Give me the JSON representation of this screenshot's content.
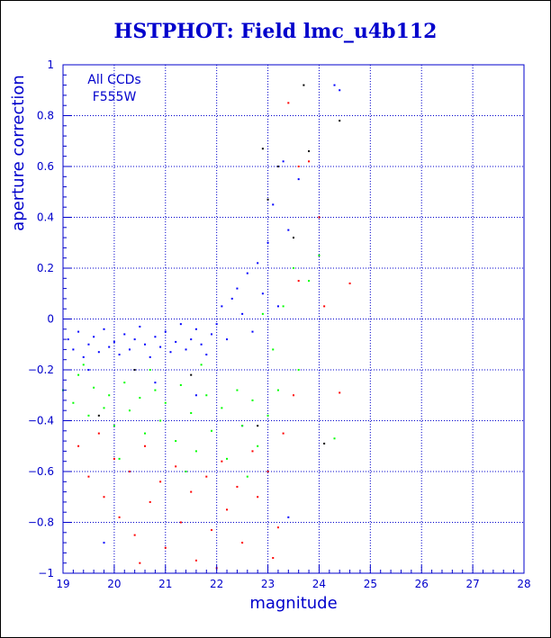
{
  "chart_data": {
    "type": "scatter",
    "title": "HSTPHOT: Field lmc_u4b112",
    "xlabel": "magnitude",
    "ylabel": "aperture correction",
    "xlim": [
      19,
      28
    ],
    "ylim": [
      -1,
      1
    ],
    "xticks": [
      19,
      20,
      21,
      22,
      23,
      24,
      25,
      26,
      27,
      28
    ],
    "yticks": [
      -1,
      -0.8,
      -0.6,
      -0.4,
      -0.2,
      0,
      0.2,
      0.4,
      0.6,
      0.8,
      1
    ],
    "ytick_labels": [
      "−1",
      "−0.8",
      "−0.6",
      "−0.4",
      "−0.2",
      "0",
      "0.2",
      "0.4",
      "0.6",
      "0.8",
      "1"
    ],
    "grid": true,
    "annotations": [
      "All CCDs",
      "F555W"
    ],
    "colors": {
      "axis": "#0000cc",
      "grid": "#0000cc",
      "text": "#0000cc",
      "title": "#0000cc"
    },
    "series": [
      {
        "color": "#0000ff",
        "points": [
          [
            19.1,
            -0.08
          ],
          [
            19.2,
            -0.12
          ],
          [
            19.3,
            -0.05
          ],
          [
            19.4,
            -0.15
          ],
          [
            19.5,
            -0.1
          ],
          [
            19.6,
            -0.07
          ],
          [
            19.7,
            -0.13
          ],
          [
            19.8,
            -0.04
          ],
          [
            19.9,
            -0.11
          ],
          [
            20.0,
            -0.09
          ],
          [
            20.1,
            -0.14
          ],
          [
            20.2,
            -0.06
          ],
          [
            20.3,
            -0.12
          ],
          [
            20.4,
            -0.08
          ],
          [
            20.5,
            -0.03
          ],
          [
            20.6,
            -0.1
          ],
          [
            20.7,
            -0.15
          ],
          [
            20.8,
            -0.07
          ],
          [
            20.9,
            -0.11
          ],
          [
            21.0,
            -0.05
          ],
          [
            21.1,
            -0.13
          ],
          [
            21.2,
            -0.09
          ],
          [
            21.3,
            -0.02
          ],
          [
            21.4,
            -0.12
          ],
          [
            21.5,
            -0.08
          ],
          [
            21.6,
            -0.04
          ],
          [
            21.7,
            -0.1
          ],
          [
            21.8,
            -0.14
          ],
          [
            21.9,
            -0.06
          ],
          [
            22.0,
            -0.02
          ],
          [
            22.1,
            0.05
          ],
          [
            22.2,
            -0.08
          ],
          [
            22.3,
            0.08
          ],
          [
            22.4,
            0.12
          ],
          [
            22.5,
            0.02
          ],
          [
            22.6,
            0.18
          ],
          [
            22.7,
            -0.05
          ],
          [
            22.8,
            0.22
          ],
          [
            22.9,
            0.1
          ],
          [
            23.0,
            0.3
          ],
          [
            23.1,
            0.45
          ],
          [
            23.2,
            0.05
          ],
          [
            23.3,
            0.62
          ],
          [
            23.4,
            0.35
          ],
          [
            23.6,
            0.55
          ],
          [
            24.3,
            0.92
          ],
          [
            24.4,
            0.9
          ],
          [
            19.5,
            -0.2
          ],
          [
            20.8,
            -0.25
          ],
          [
            21.6,
            -0.3
          ],
          [
            22.5,
            -0.42
          ],
          [
            19.8,
            -0.88
          ],
          [
            23.4,
            -0.78
          ]
        ]
      },
      {
        "color": "#00ff00",
        "points": [
          [
            19.0,
            -0.28
          ],
          [
            19.2,
            -0.33
          ],
          [
            19.3,
            -0.22
          ],
          [
            19.5,
            -0.38
          ],
          [
            19.6,
            -0.27
          ],
          [
            19.8,
            -0.35
          ],
          [
            19.9,
            -0.3
          ],
          [
            20.0,
            -0.42
          ],
          [
            20.2,
            -0.25
          ],
          [
            20.3,
            -0.36
          ],
          [
            20.5,
            -0.31
          ],
          [
            20.6,
            -0.45
          ],
          [
            20.8,
            -0.28
          ],
          [
            20.9,
            -0.4
          ],
          [
            21.0,
            -0.33
          ],
          [
            21.2,
            -0.48
          ],
          [
            21.3,
            -0.26
          ],
          [
            21.5,
            -0.37
          ],
          [
            21.6,
            -0.52
          ],
          [
            21.8,
            -0.3
          ],
          [
            21.9,
            -0.44
          ],
          [
            22.1,
            -0.35
          ],
          [
            22.2,
            -0.55
          ],
          [
            22.4,
            -0.28
          ],
          [
            22.5,
            -0.42
          ],
          [
            22.7,
            -0.32
          ],
          [
            22.8,
            -0.5
          ],
          [
            23.0,
            -0.38
          ],
          [
            23.1,
            -0.12
          ],
          [
            23.3,
            0.05
          ],
          [
            23.5,
            0.2
          ],
          [
            23.6,
            -0.2
          ],
          [
            23.8,
            0.15
          ],
          [
            24.0,
            0.25
          ],
          [
            22.9,
            0.02
          ],
          [
            23.2,
            -0.28
          ],
          [
            20.1,
            -0.55
          ],
          [
            21.4,
            -0.6
          ],
          [
            22.6,
            -0.62
          ],
          [
            24.3,
            -0.47
          ],
          [
            19.4,
            -0.18
          ],
          [
            20.7,
            -0.2
          ],
          [
            21.7,
            -0.18
          ]
        ]
      },
      {
        "color": "#ff0000",
        "points": [
          [
            19.3,
            -0.5
          ],
          [
            19.5,
            -0.62
          ],
          [
            19.7,
            -0.45
          ],
          [
            19.8,
            -0.7
          ],
          [
            20.0,
            -0.55
          ],
          [
            20.1,
            -0.78
          ],
          [
            20.3,
            -0.6
          ],
          [
            20.4,
            -0.85
          ],
          [
            20.6,
            -0.5
          ],
          [
            20.7,
            -0.72
          ],
          [
            20.9,
            -0.64
          ],
          [
            21.0,
            -0.9
          ],
          [
            21.2,
            -0.58
          ],
          [
            21.3,
            -0.8
          ],
          [
            21.5,
            -0.68
          ],
          [
            21.6,
            -0.95
          ],
          [
            21.8,
            -0.62
          ],
          [
            21.9,
            -0.83
          ],
          [
            22.1,
            -0.56
          ],
          [
            22.2,
            -0.75
          ],
          [
            22.4,
            -0.66
          ],
          [
            22.5,
            -0.88
          ],
          [
            22.7,
            -0.52
          ],
          [
            22.8,
            -0.7
          ],
          [
            23.0,
            -0.6
          ],
          [
            23.2,
            -0.82
          ],
          [
            23.3,
            -0.45
          ],
          [
            23.5,
            -0.3
          ],
          [
            23.6,
            0.15
          ],
          [
            23.8,
            0.62
          ],
          [
            24.0,
            0.4
          ],
          [
            23.4,
            0.85
          ],
          [
            24.6,
            0.14
          ],
          [
            24.4,
            -0.29
          ],
          [
            23.1,
            -0.94
          ],
          [
            20.5,
            -0.96
          ],
          [
            22.0,
            -0.98
          ],
          [
            23.6,
            0.6
          ],
          [
            24.1,
            0.05
          ]
        ]
      },
      {
        "color": "#000000",
        "points": [
          [
            22.9,
            0.67
          ],
          [
            23.2,
            0.6
          ],
          [
            23.7,
            0.92
          ],
          [
            24.4,
            0.78
          ],
          [
            23.8,
            0.66
          ],
          [
            23.0,
            0.47
          ],
          [
            23.5,
            0.32
          ],
          [
            24.1,
            -0.49
          ],
          [
            22.8,
            -0.42
          ],
          [
            21.5,
            -0.22
          ],
          [
            20.4,
            -0.2
          ],
          [
            19.7,
            -0.38
          ]
        ]
      }
    ]
  }
}
